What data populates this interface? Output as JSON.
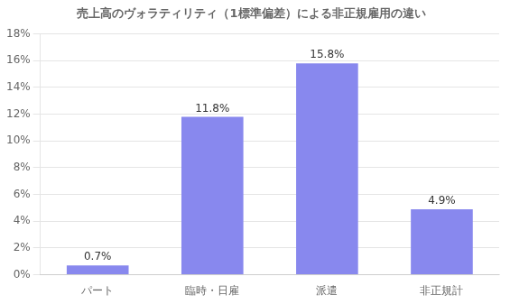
{
  "chart_data": {
    "type": "bar",
    "title": "売上高のヴォラティリティ（1標準偏差）による非正規雇用の違い",
    "categories": [
      "パート",
      "臨時・日雇",
      "派遣",
      "非正規計"
    ],
    "values": [
      0.7,
      11.8,
      15.8,
      4.9
    ],
    "value_labels": [
      "0.7%",
      "11.8%",
      "15.8%",
      "4.9%"
    ],
    "data_labels": true,
    "color": "#8888ee",
    "ylim": [
      0,
      18
    ],
    "yticks": [
      {
        "value": 0,
        "label": "0%"
      },
      {
        "value": 2,
        "label": "2%"
      },
      {
        "value": 4,
        "label": "4%"
      },
      {
        "value": 6,
        "label": "6%"
      },
      {
        "value": 8,
        "label": "8%"
      },
      {
        "value": 10,
        "label": "10%"
      },
      {
        "value": 12,
        "label": "12%"
      },
      {
        "value": 14,
        "label": "14%"
      },
      {
        "value": 16,
        "label": "16%"
      },
      {
        "value": 18,
        "label": "18%"
      }
    ],
    "grid": true
  }
}
